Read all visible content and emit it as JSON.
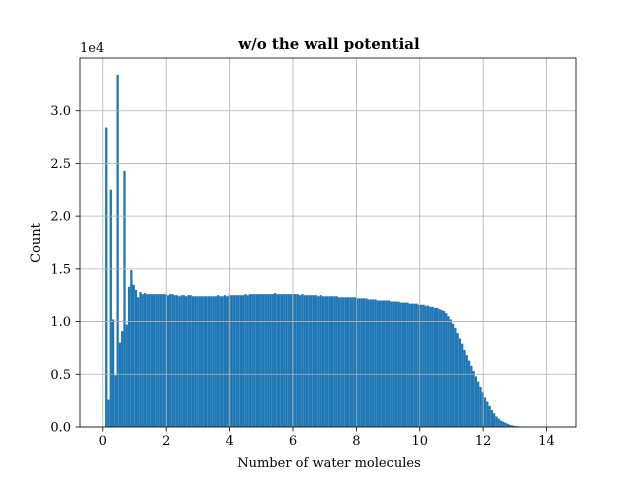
{
  "chart_data": {
    "type": "bar",
    "title": "w/o the wall potential",
    "xlabel": "Number of water molecules",
    "ylabel": "Count",
    "y_offset_label": "1e4",
    "xlim": [
      -0.72,
      14.93
    ],
    "ylim": [
      0,
      3.5
    ],
    "x_ticks": [
      0,
      2,
      4,
      6,
      8,
      10,
      12,
      14
    ],
    "x_tick_labels": [
      "0",
      "2",
      "4",
      "6",
      "8",
      "10",
      "12",
      "14"
    ],
    "y_ticks": [
      0,
      0.5,
      1.0,
      1.5,
      2.0,
      2.5,
      3.0
    ],
    "y_tick_labels": [
      "0.0",
      "0.5",
      "1.0",
      "1.5",
      "2.0",
      "2.5",
      "3.0"
    ],
    "grid": true,
    "bar_color": "#1f77b4",
    "bin_start": 0.0,
    "bin_width": 0.072,
    "values_unit": "count / 1e4",
    "values": [
      0,
      2.84,
      0.26,
      2.25,
      1.02,
      0.49,
      3.34,
      0.8,
      0.91,
      2.43,
      0.97,
      1.33,
      1.49,
      1.35,
      1.3,
      1.23,
      1.28,
      1.26,
      1.27,
      1.26,
      1.26,
      1.26,
      1.26,
      1.26,
      1.26,
      1.26,
      1.26,
      1.26,
      1.25,
      1.26,
      1.26,
      1.25,
      1.25,
      1.24,
      1.25,
      1.25,
      1.24,
      1.25,
      1.25,
      1.24,
      1.24,
      1.24,
      1.24,
      1.24,
      1.24,
      1.24,
      1.24,
      1.24,
      1.24,
      1.24,
      1.25,
      1.24,
      1.24,
      1.25,
      1.24,
      1.25,
      1.25,
      1.25,
      1.25,
      1.25,
      1.25,
      1.25,
      1.26,
      1.25,
      1.26,
      1.26,
      1.26,
      1.26,
      1.26,
      1.26,
      1.26,
      1.26,
      1.26,
      1.26,
      1.26,
      1.27,
      1.26,
      1.26,
      1.26,
      1.26,
      1.26,
      1.26,
      1.26,
      1.26,
      1.26,
      1.26,
      1.25,
      1.26,
      1.25,
      1.25,
      1.25,
      1.25,
      1.25,
      1.25,
      1.24,
      1.25,
      1.24,
      1.24,
      1.24,
      1.24,
      1.24,
      1.24,
      1.24,
      1.23,
      1.23,
      1.23,
      1.23,
      1.23,
      1.23,
      1.23,
      1.23,
      1.22,
      1.22,
      1.22,
      1.22,
      1.22,
      1.21,
      1.21,
      1.21,
      1.21,
      1.2,
      1.2,
      1.2,
      1.2,
      1.2,
      1.2,
      1.19,
      1.19,
      1.19,
      1.19,
      1.18,
      1.18,
      1.18,
      1.18,
      1.17,
      1.17,
      1.17,
      1.17,
      1.16,
      1.16,
      1.16,
      1.15,
      1.15,
      1.14,
      1.14,
      1.13,
      1.13,
      1.12,
      1.11,
      1.1,
      1.08,
      1.05,
      1.02,
      0.98,
      0.94,
      0.89,
      0.84,
      0.79,
      0.73,
      0.68,
      0.63,
      0.58,
      0.53,
      0.48,
      0.43,
      0.38,
      0.33,
      0.28,
      0.24,
      0.2,
      0.16,
      0.13,
      0.1,
      0.08,
      0.06,
      0.05,
      0.04,
      0.03,
      0.02,
      0.015,
      0.01,
      0.008,
      0.006,
      0.004,
      0.003,
      0.002,
      0.001
    ]
  }
}
